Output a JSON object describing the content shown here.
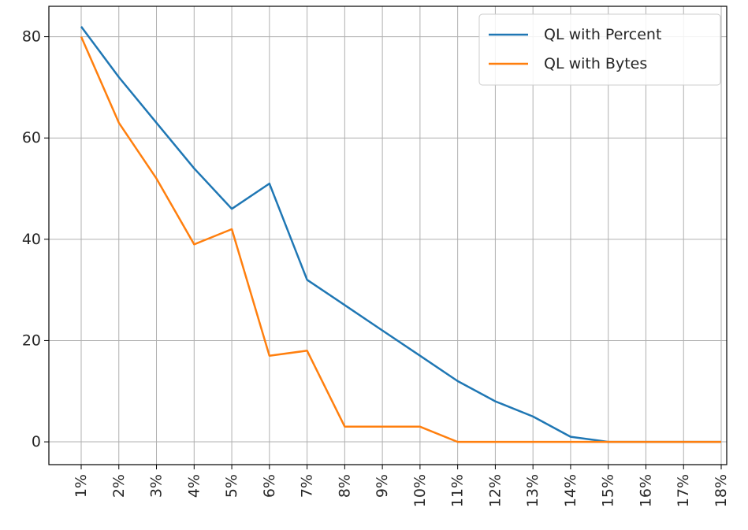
{
  "chart_data": {
    "type": "line",
    "title": "",
    "xlabel": "",
    "ylabel": "",
    "categories": [
      "1%",
      "2%",
      "3%",
      "4%",
      "5%",
      "6%",
      "7%",
      "8%",
      "9%",
      "10%",
      "11%",
      "12%",
      "13%",
      "14%",
      "15%",
      "16%",
      "17%",
      "18%"
    ],
    "ylim": [
      -4.5,
      86
    ],
    "yticks": [
      0,
      20,
      40,
      60,
      80
    ],
    "grid": true,
    "legend_position": "top-right",
    "series": [
      {
        "name": "QL with Percent",
        "color": "#1f77b4",
        "values": [
          82,
          72,
          63,
          54,
          46,
          51,
          32,
          27,
          22,
          17,
          12,
          8,
          5,
          1,
          0,
          0,
          0,
          0
        ]
      },
      {
        "name": "QL with Bytes",
        "color": "#ff7f0e",
        "values": [
          80,
          63,
          52,
          39,
          42,
          17,
          18,
          3,
          3,
          3,
          0,
          0,
          0,
          0,
          0,
          0,
          0,
          0
        ]
      }
    ]
  }
}
